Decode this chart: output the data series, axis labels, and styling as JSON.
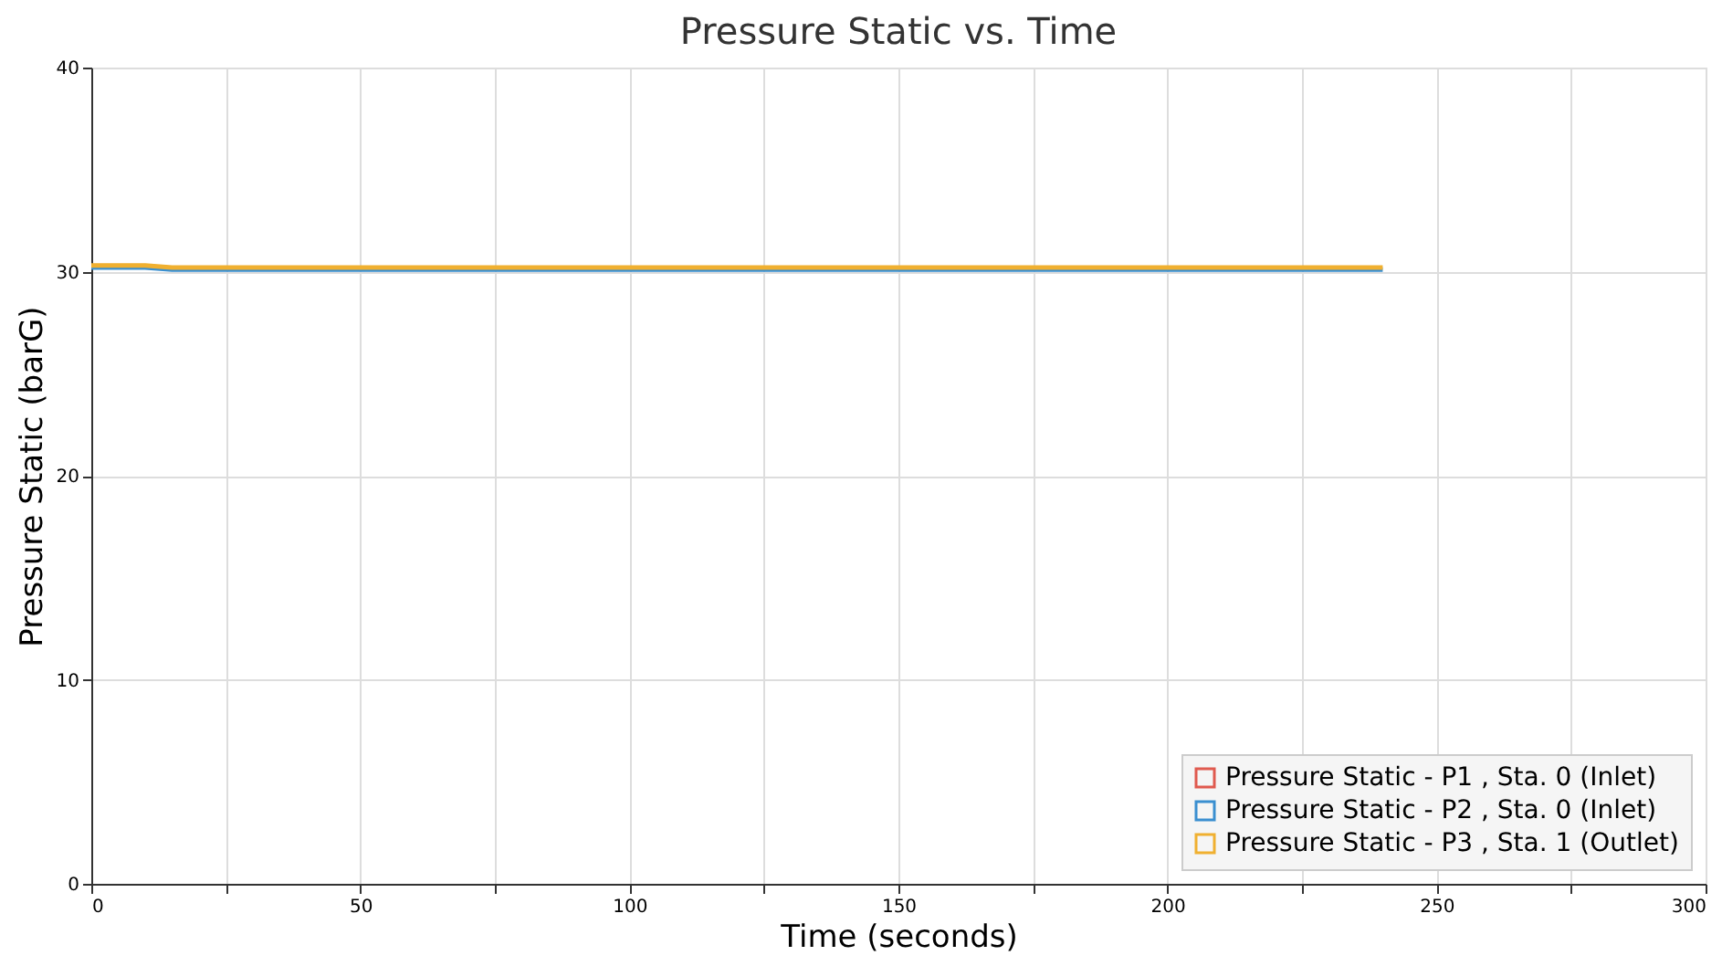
{
  "chart_data": {
    "type": "line",
    "title": "Pressure Static vs. Time",
    "xlabel": "Time (seconds)",
    "ylabel": "Pressure Static (barG)",
    "xlim": [
      0,
      300
    ],
    "xticks": [
      0,
      {
        "value": 25,
        "label": null
      },
      50,
      {
        "value": 75,
        "label": null
      },
      100,
      {
        "value": 125,
        "label": null
      },
      150,
      {
        "value": 175,
        "label": null
      },
      200,
      {
        "value": 225,
        "label": null
      },
      250,
      {
        "value": 275,
        "label": null
      },
      300
    ],
    "ylim": [
      0,
      40
    ],
    "yticks": [
      0,
      10,
      20,
      30,
      40
    ],
    "grid": true,
    "legend": "bottom right",
    "line_style": "solid",
    "marker": "none",
    "series": [
      {
        "name": "Pressure Static - P1 , Sta. 0 (Inlet)",
        "color": "#e05a4f",
        "values": [
          null,
          null,
          null,
          null
        ]
      },
      {
        "name": "Pressure Static - P2 , Sta. 0 (Inlet)",
        "color": "#3a8fd0",
        "x": [
          0,
          10,
          15,
          240
        ],
        "values": [
          30.2,
          30.2,
          30.1,
          30.1
        ]
      },
      {
        "name": "Pressure Static - P3 , Sta. 1 (Outlet)",
        "color": "#f0b030",
        "x": [
          0,
          10,
          15,
          240
        ],
        "values": [
          30.3,
          30.3,
          30.2,
          30.2
        ]
      }
    ]
  }
}
